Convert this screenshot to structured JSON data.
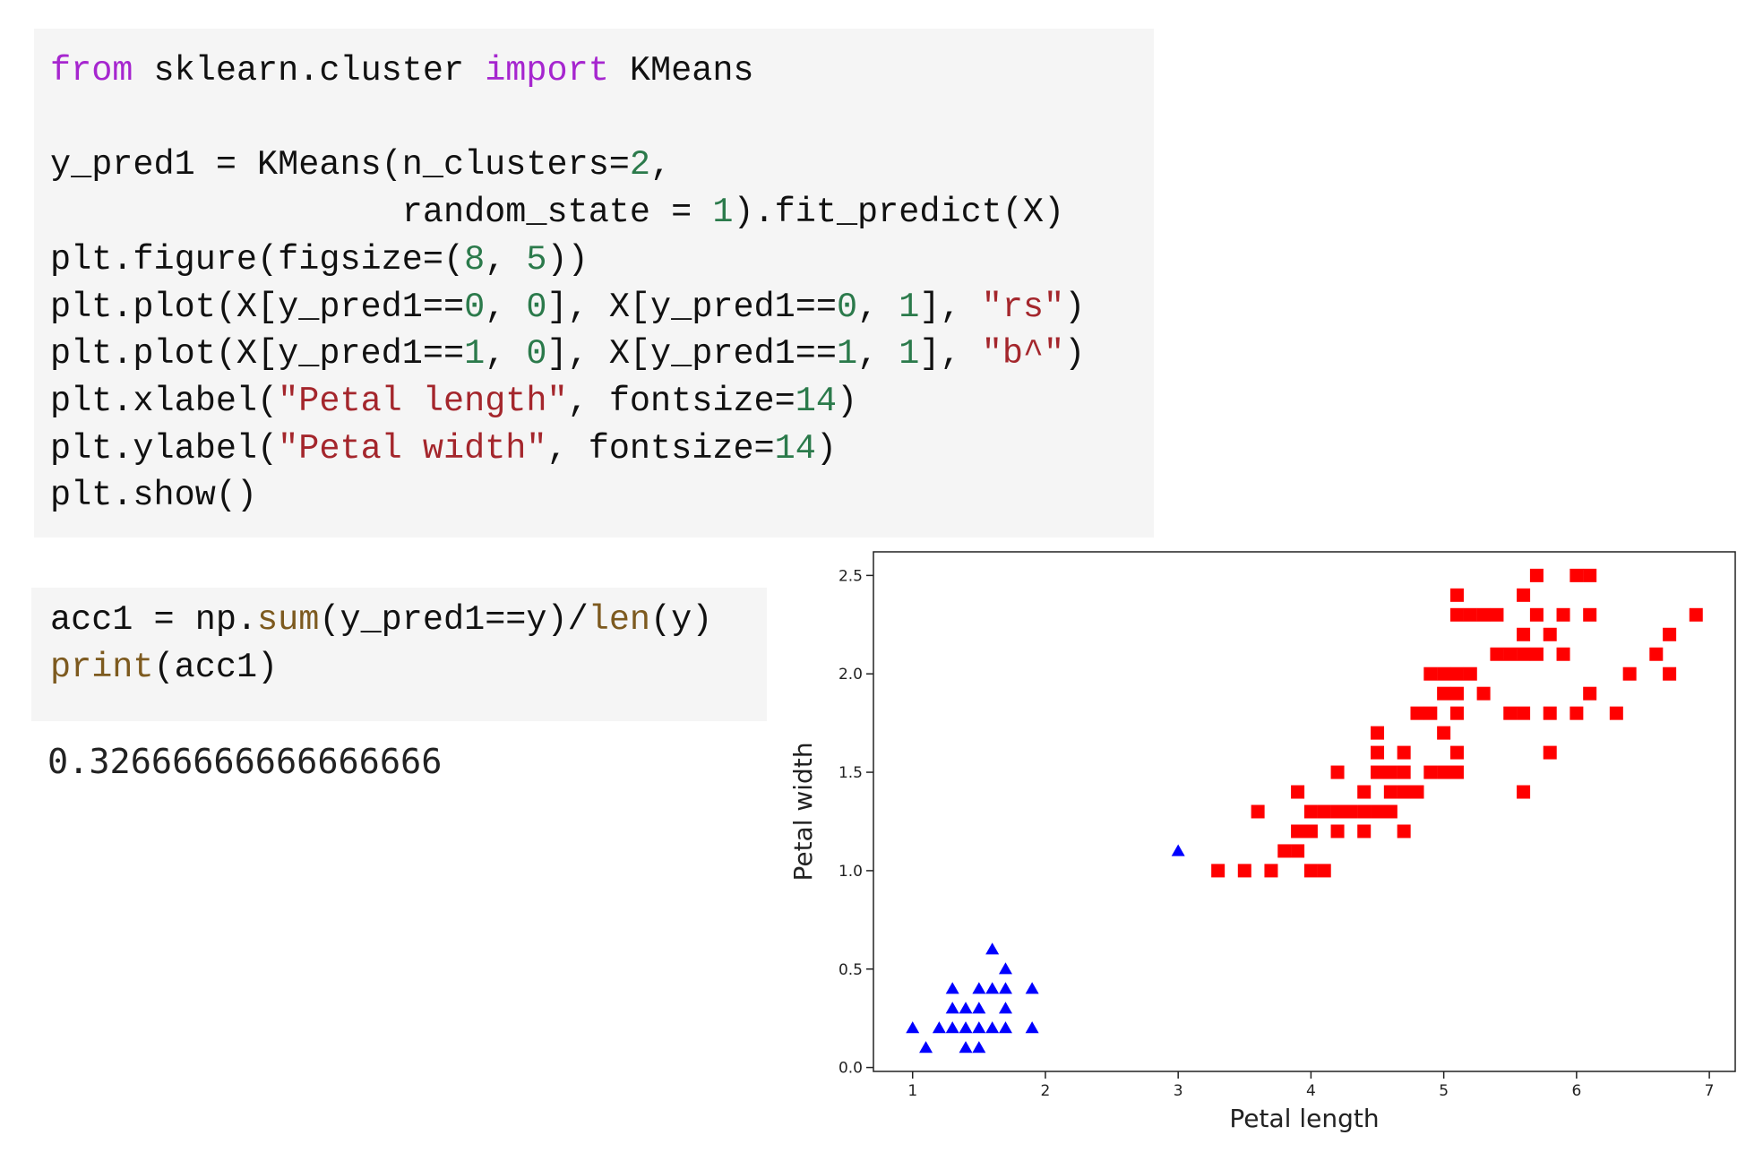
{
  "cells": [
    {
      "lines": [
        "from sklearn.cluster import KMeans",
        "",
        "y_pred1 = KMeans(n_clusters=2,",
        "                 random_state = 1).fit_predict(X)",
        "plt.figure(figsize=(8, 5))",
        "plt.plot(X[y_pred1==0, 0], X[y_pred1==0, 1], \"rs\")",
        "plt.plot(X[y_pred1==1, 0], X[y_pred1==1, 1], \"b^\")",
        "plt.xlabel(\"Petal length\", fontsize=14)",
        "plt.ylabel(\"Petal width\", fontsize=14)",
        "plt.show()"
      ]
    },
    {
      "lines": [
        "acc1 = np.sum(y_pred1==y)/len(y)",
        "print(acc1)"
      ]
    }
  ],
  "output": "0.32666666666666666",
  "chart_data": {
    "type": "scatter",
    "x_label": "Petal length",
    "y_label": "Petal width",
    "xlim": [
      0.705,
      7.195
    ],
    "ylim": [
      -0.02,
      2.62
    ],
    "xticks": [
      1,
      2,
      3,
      4,
      5,
      6,
      7
    ],
    "yticks": [
      {
        "value": 0,
        "label": "0.0"
      },
      0.5,
      {
        "value": 1,
        "label": "1.0"
      },
      1.5,
      {
        "value": 2,
        "label": "2.0"
      },
      2.5
    ],
    "series": [
      {
        "color": "#ff0000",
        "marker": "square",
        "x": [
          4.7,
          4.5,
          4.9,
          4.0,
          4.6,
          4.5,
          4.7,
          3.3,
          4.6,
          3.9,
          3.5,
          4.2,
          4.0,
          3.6,
          4.4,
          4.1,
          3.9,
          4.8,
          4.7,
          4.3,
          4.8,
          5.0,
          3.8,
          3.7,
          3.9,
          5.1,
          4.5,
          4.7,
          4.4,
          4.1,
          4.4,
          4.6,
          4.0,
          4.2,
          4.2,
          6.0,
          5.1,
          5.9,
          5.6,
          5.8,
          6.6,
          4.5,
          6.3,
          5.8,
          6.1,
          5.1,
          5.3,
          5.5,
          5.0,
          5.1,
          5.3,
          5.5,
          6.7,
          6.9,
          5.0,
          5.7,
          4.9,
          6.7,
          4.9,
          5.7,
          6.0,
          5.6,
          5.8,
          6.1,
          6.4,
          5.6,
          5.1,
          5.6,
          6.1,
          5.6,
          5.4,
          5.1,
          5.9,
          5.7,
          5.2,
          5.0,
          5.2,
          5.4,
          5.1
        ],
        "values": [
          1.4,
          1.5,
          1.5,
          1.3,
          1.5,
          1.3,
          1.6,
          1.0,
          1.3,
          1.4,
          1.0,
          1.5,
          1.0,
          1.3,
          1.4,
          1.0,
          1.1,
          1.8,
          1.2,
          1.3,
          1.4,
          1.7,
          1.1,
          1.0,
          1.2,
          1.6,
          1.6,
          1.5,
          1.3,
          1.3,
          1.2,
          1.4,
          1.2,
          1.3,
          1.2,
          2.5,
          1.9,
          2.1,
          1.8,
          2.2,
          2.1,
          1.7,
          1.8,
          1.8,
          2.5,
          2.0,
          1.9,
          2.1,
          2.0,
          2.4,
          2.3,
          1.8,
          2.2,
          2.3,
          1.5,
          2.3,
          2.0,
          2.0,
          1.8,
          2.1,
          1.8,
          2.1,
          1.6,
          1.9,
          2.0,
          2.2,
          1.5,
          1.4,
          2.3,
          2.4,
          2.1,
          2.3,
          2.3,
          2.5,
          2.3,
          1.9,
          2.0,
          2.3,
          1.8
        ]
      },
      {
        "color": "#0000ff",
        "marker": "triangle",
        "x": [
          1.4,
          1.3,
          1.5,
          1.7,
          1.4,
          1.5,
          1.6,
          1.4,
          1.1,
          1.2,
          1.5,
          1.3,
          1.7,
          1.5,
          1.7,
          1.0,
          1.7,
          1.9,
          1.6,
          1.3,
          1.6,
          1.9,
          3.0
        ],
        "values": [
          0.2,
          0.2,
          0.2,
          0.4,
          0.3,
          0.1,
          0.2,
          0.1,
          0.1,
          0.2,
          0.4,
          0.4,
          0.3,
          0.3,
          0.2,
          0.2,
          0.5,
          0.2,
          0.4,
          0.3,
          0.6,
          0.4,
          1.1
        ]
      }
    ]
  }
}
